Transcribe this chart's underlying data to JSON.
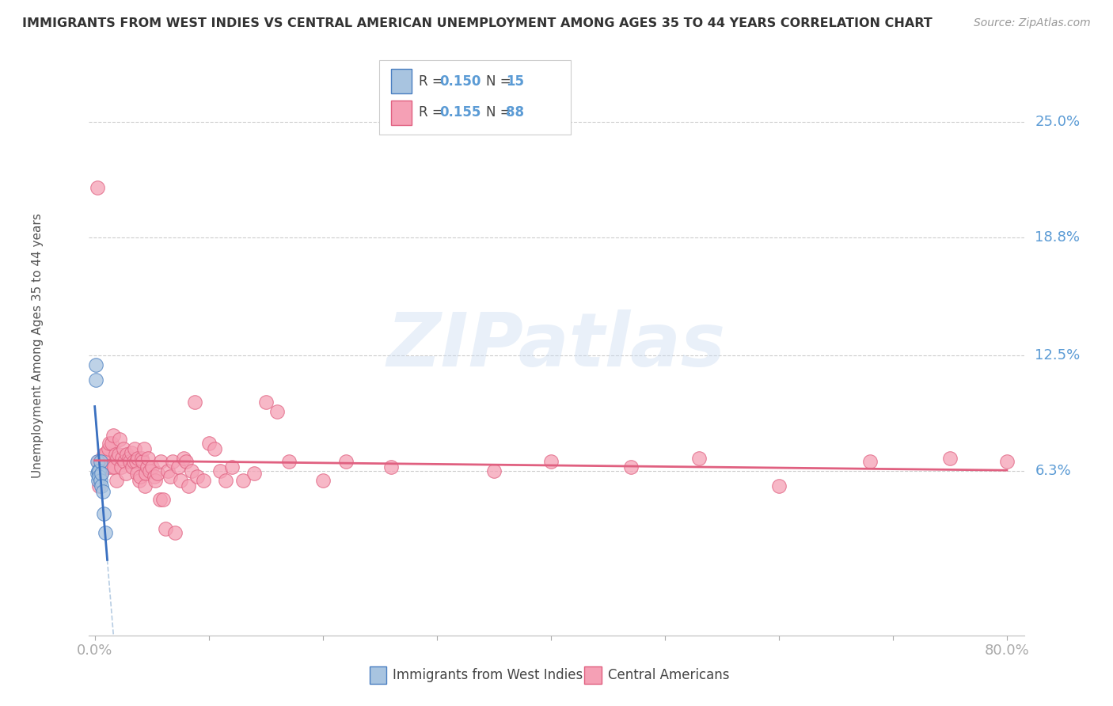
{
  "title": "IMMIGRANTS FROM WEST INDIES VS CENTRAL AMERICAN UNEMPLOYMENT AMONG AGES 35 TO 44 YEARS CORRELATION CHART",
  "source": "Source: ZipAtlas.com",
  "ylabel": "Unemployment Among Ages 35 to 44 years",
  "ytick_labels": [
    "25.0%",
    "18.8%",
    "12.5%",
    "6.3%"
  ],
  "ytick_values": [
    0.25,
    0.188,
    0.125,
    0.063
  ],
  "xlim": [
    -0.005,
    0.815
  ],
  "ylim": [
    -0.025,
    0.285
  ],
  "color1": "#a8c4e0",
  "color1_line": "#4a7fc1",
  "color1_trend": "#3a70c0",
  "color2": "#f5a0b5",
  "color2_line": "#e06080",
  "color2_trend": "#e06080",
  "color_dashed": "#b0c8e0",
  "watermark": "ZIPatlas",
  "label1": "Immigrants from West Indies",
  "label2": "Central Americans",
  "west_indies_x": [
    0.001,
    0.001,
    0.002,
    0.002,
    0.003,
    0.003,
    0.004,
    0.004,
    0.005,
    0.005,
    0.006,
    0.006,
    0.007,
    0.008,
    0.009
  ],
  "west_indies_y": [
    0.12,
    0.112,
    0.068,
    0.062,
    0.063,
    0.058,
    0.063,
    0.06,
    0.068,
    0.058,
    0.062,
    0.055,
    0.052,
    0.04,
    0.03
  ],
  "central_american_x": [
    0.002,
    0.003,
    0.004,
    0.005,
    0.006,
    0.007,
    0.008,
    0.009,
    0.01,
    0.011,
    0.012,
    0.013,
    0.014,
    0.015,
    0.016,
    0.017,
    0.018,
    0.019,
    0.02,
    0.021,
    0.022,
    0.023,
    0.024,
    0.025,
    0.026,
    0.027,
    0.028,
    0.03,
    0.031,
    0.032,
    0.033,
    0.034,
    0.035,
    0.036,
    0.037,
    0.038,
    0.039,
    0.04,
    0.041,
    0.042,
    0.043,
    0.044,
    0.045,
    0.046,
    0.047,
    0.048,
    0.05,
    0.052,
    0.053,
    0.055,
    0.057,
    0.058,
    0.06,
    0.062,
    0.064,
    0.066,
    0.068,
    0.07,
    0.073,
    0.075,
    0.078,
    0.08,
    0.082,
    0.085,
    0.088,
    0.09,
    0.095,
    0.1,
    0.105,
    0.11,
    0.115,
    0.12,
    0.13,
    0.14,
    0.15,
    0.16,
    0.17,
    0.2,
    0.22,
    0.26,
    0.35,
    0.4,
    0.47,
    0.53,
    0.6,
    0.68,
    0.75,
    0.8
  ],
  "central_american_y": [
    0.215,
    0.068,
    0.055,
    0.065,
    0.062,
    0.07,
    0.072,
    0.068,
    0.073,
    0.065,
    0.075,
    0.078,
    0.065,
    0.078,
    0.082,
    0.065,
    0.072,
    0.058,
    0.07,
    0.072,
    0.08,
    0.065,
    0.07,
    0.075,
    0.068,
    0.062,
    0.072,
    0.07,
    0.068,
    0.073,
    0.065,
    0.068,
    0.075,
    0.068,
    0.062,
    0.07,
    0.058,
    0.06,
    0.07,
    0.068,
    0.075,
    0.055,
    0.062,
    0.065,
    0.07,
    0.063,
    0.065,
    0.06,
    0.058,
    0.062,
    0.048,
    0.068,
    0.048,
    0.032,
    0.063,
    0.06,
    0.068,
    0.03,
    0.065,
    0.058,
    0.07,
    0.068,
    0.055,
    0.063,
    0.1,
    0.06,
    0.058,
    0.078,
    0.075,
    0.063,
    0.058,
    0.065,
    0.058,
    0.062,
    0.1,
    0.095,
    0.068,
    0.058,
    0.068,
    0.065,
    0.063,
    0.068,
    0.065,
    0.07,
    0.055,
    0.068,
    0.07,
    0.068
  ]
}
